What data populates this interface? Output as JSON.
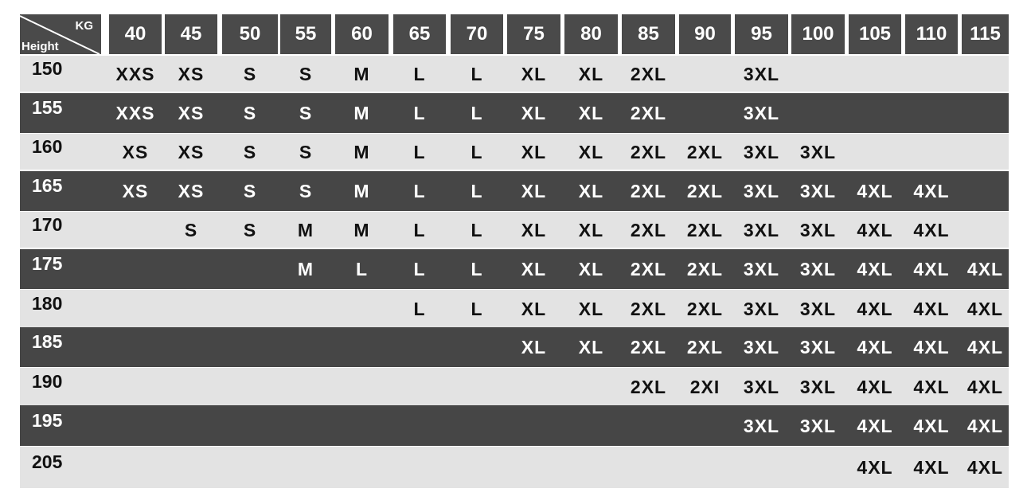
{
  "header": {
    "corner_top": "KG",
    "corner_bottom": "Height",
    "weights": [
      "40",
      "45",
      "50",
      "55",
      "60",
      "65",
      "70",
      "75",
      "80",
      "85",
      "90",
      "95",
      "100",
      "105",
      "110",
      "115"
    ]
  },
  "rows": [
    {
      "height": "150",
      "sizes": [
        "XXS",
        "XS",
        "S",
        "S",
        "M",
        "L",
        "L",
        "XL",
        "XL",
        "2XL",
        "",
        "3XL",
        "",
        "",
        "",
        ""
      ]
    },
    {
      "height": "155",
      "sizes": [
        "XXS",
        "XS",
        "S",
        "S",
        "M",
        "L",
        "L",
        "XL",
        "XL",
        "2XL",
        "",
        "3XL",
        "",
        "",
        "",
        ""
      ]
    },
    {
      "height": "160",
      "sizes": [
        "XS",
        "XS",
        "S",
        "S",
        "M",
        "L",
        "L",
        "XL",
        "XL",
        "2XL",
        "2XL",
        "3XL",
        "3XL",
        "",
        "",
        ""
      ]
    },
    {
      "height": "165",
      "sizes": [
        "XS",
        "XS",
        "S",
        "S",
        "M",
        "L",
        "L",
        "XL",
        "XL",
        "2XL",
        "2XL",
        "3XL",
        "3XL",
        "4XL",
        "4XL",
        ""
      ]
    },
    {
      "height": "170",
      "sizes": [
        "",
        "S",
        "S",
        "M",
        "M",
        "L",
        "L",
        "XL",
        "XL",
        "2XL",
        "2XL",
        "3XL",
        "3XL",
        "4XL",
        "4XL",
        ""
      ]
    },
    {
      "height": "175",
      "sizes": [
        "",
        "",
        "",
        "M",
        "L",
        "L",
        "L",
        "XL",
        "XL",
        "2XL",
        "2XL",
        "3XL",
        "3XL",
        "4XL",
        "4XL",
        "4XL"
      ]
    },
    {
      "height": "180",
      "sizes": [
        "",
        "",
        "",
        "",
        "",
        "L",
        "L",
        "XL",
        "XL",
        "2XL",
        "2XL",
        "3XL",
        "3XL",
        "4XL",
        "4XL",
        "4XL"
      ]
    },
    {
      "height": "185",
      "sizes": [
        "",
        "",
        "",
        "",
        "",
        "",
        "",
        "XL",
        "XL",
        "2XL",
        "2XL",
        "3XL",
        "3XL",
        "4XL",
        "4XL",
        "4XL"
      ]
    },
    {
      "height": "190",
      "sizes": [
        "",
        "",
        "",
        "",
        "",
        "",
        "",
        "",
        "",
        "2XL",
        "2XI",
        "3XL",
        "3XL",
        "4XL",
        "4XL",
        "4XL"
      ]
    },
    {
      "height": "195",
      "sizes": [
        "",
        "",
        "",
        "",
        "",
        "",
        "",
        "",
        "",
        "",
        "",
        "3XL",
        "3XL",
        "4XL",
        "4XL",
        "4XL"
      ]
    },
    {
      "height": "205",
      "sizes": [
        "",
        "",
        "",
        "",
        "",
        "",
        "",
        "",
        "",
        "",
        "",
        "",
        "",
        "4XL",
        "4XL",
        "4XL"
      ]
    }
  ],
  "colors": {
    "dark": "#464646",
    "light": "#e3e3e3"
  }
}
